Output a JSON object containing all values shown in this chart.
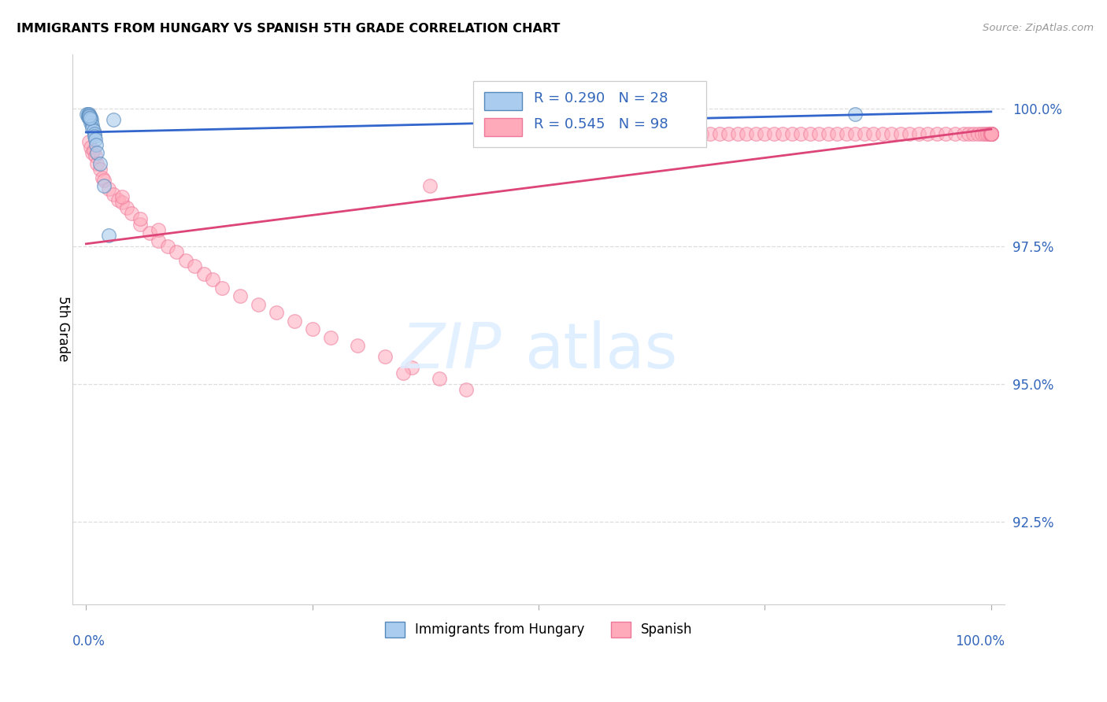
{
  "title": "IMMIGRANTS FROM HUNGARY VS SPANISH 5TH GRADE CORRELATION CHART",
  "source": "Source: ZipAtlas.com",
  "ylabel": "5th Grade",
  "blue_R": 0.29,
  "blue_N": 28,
  "pink_R": 0.545,
  "pink_N": 98,
  "blue_color": "#AACCEE",
  "blue_edge_color": "#5588BB",
  "pink_color": "#FFAABB",
  "pink_edge_color": "#EE7799",
  "blue_line_color": "#3366CC",
  "pink_line_color": "#DD4477",
  "label_color": "#3366BB",
  "grid_color": "#DDDDDD",
  "yticks": [
    92.5,
    95.0,
    97.5,
    100.0
  ],
  "ymin": 91.0,
  "ymax": 101.0,
  "xmin": -0.015,
  "xmax": 1.015,
  "watermark_color": "#DDEEFF",
  "blue_legend_label": "Immigrants from Hungary",
  "pink_legend_label": "Spanish",
  "blue_points_x": [
    0.001,
    0.002,
    0.002,
    0.003,
    0.003,
    0.003,
    0.004,
    0.004,
    0.005,
    0.005,
    0.005,
    0.006,
    0.007,
    0.007,
    0.008,
    0.009,
    0.009,
    0.01,
    0.011,
    0.012,
    0.015,
    0.02,
    0.025,
    0.03,
    0.6,
    0.85,
    0.003,
    0.004
  ],
  "blue_points_y": [
    99.9,
    99.9,
    99.85,
    99.9,
    99.88,
    99.86,
    99.85,
    99.82,
    99.85,
    99.8,
    99.75,
    99.8,
    99.7,
    99.65,
    99.6,
    99.55,
    99.5,
    99.45,
    99.35,
    99.2,
    99.0,
    98.6,
    97.7,
    99.8,
    99.9,
    99.9,
    99.88,
    99.84
  ],
  "pink_points_x": [
    0.003,
    0.005,
    0.007,
    0.008,
    0.01,
    0.012,
    0.015,
    0.018,
    0.02,
    0.025,
    0.03,
    0.035,
    0.04,
    0.045,
    0.05,
    0.06,
    0.07,
    0.08,
    0.09,
    0.1,
    0.11,
    0.12,
    0.13,
    0.14,
    0.15,
    0.17,
    0.19,
    0.21,
    0.23,
    0.25,
    0.27,
    0.3,
    0.33,
    0.36,
    0.39,
    0.42,
    0.45,
    0.48,
    0.51,
    0.04,
    0.06,
    0.08,
    0.35,
    0.38,
    0.55,
    0.6,
    0.64,
    0.65,
    0.66,
    0.67,
    0.68,
    0.69,
    0.7,
    0.71,
    0.72,
    0.73,
    0.74,
    0.75,
    0.76,
    0.77,
    0.78,
    0.79,
    0.8,
    0.81,
    0.82,
    0.83,
    0.84,
    0.85,
    0.86,
    0.87,
    0.88,
    0.89,
    0.9,
    0.91,
    0.92,
    0.93,
    0.94,
    0.95,
    0.96,
    0.97,
    0.975,
    0.98,
    0.985,
    0.99,
    0.993,
    0.996,
    0.998,
    0.999,
    1.0,
    1.0,
    1.0,
    1.0,
    1.0,
    1.0,
    1.0,
    1.0,
    1.0,
    1.0
  ],
  "pink_points_y": [
    99.4,
    99.3,
    99.2,
    99.25,
    99.15,
    99.0,
    98.9,
    98.75,
    98.7,
    98.55,
    98.45,
    98.35,
    98.3,
    98.2,
    98.1,
    97.9,
    97.75,
    97.6,
    97.5,
    97.4,
    97.25,
    97.15,
    97.0,
    96.9,
    96.75,
    96.6,
    96.45,
    96.3,
    96.15,
    96.0,
    95.85,
    95.7,
    95.5,
    95.3,
    95.1,
    94.9,
    99.45,
    99.5,
    99.55,
    98.4,
    98.0,
    97.8,
    95.2,
    98.6,
    99.55,
    99.55,
    99.55,
    99.55,
    99.55,
    99.55,
    99.55,
    99.55,
    99.55,
    99.55,
    99.55,
    99.55,
    99.55,
    99.55,
    99.55,
    99.55,
    99.55,
    99.55,
    99.55,
    99.55,
    99.55,
    99.55,
    99.55,
    99.55,
    99.55,
    99.55,
    99.55,
    99.55,
    99.55,
    99.55,
    99.55,
    99.55,
    99.55,
    99.55,
    99.55,
    99.55,
    99.55,
    99.55,
    99.55,
    99.55,
    99.55,
    99.55,
    99.55,
    99.55,
    99.55,
    99.55,
    99.55,
    99.55,
    99.55,
    99.55,
    99.55,
    99.55,
    99.55,
    99.55
  ]
}
